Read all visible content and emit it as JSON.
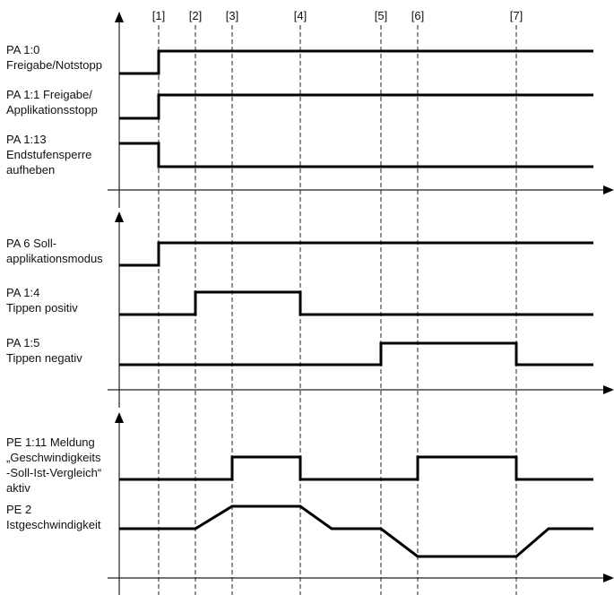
{
  "markers": [
    "[1]",
    "[2]",
    "[3]",
    "[4]",
    "[5]",
    "[6]",
    "[7]"
  ],
  "panels": [
    {
      "signals": [
        {
          "label": [
            "PA 1:0",
            "Freigabe/Notstopp"
          ],
          "type": "digital",
          "levels": [
            0,
            1,
            1,
            1,
            1,
            1,
            1,
            1
          ]
        },
        {
          "label": [
            "PA 1:1 Freigabe/",
            "Applikationsstopp"
          ],
          "type": "digital",
          "levels": [
            0,
            1,
            1,
            1,
            1,
            1,
            1,
            1
          ]
        },
        {
          "label": [
            "PA 1:13",
            "Endstufensperre",
            "aufheben"
          ],
          "type": "digital",
          "levels": [
            1,
            0,
            0,
            0,
            0,
            0,
            0,
            0
          ]
        }
      ]
    },
    {
      "signals": [
        {
          "label": [
            "PA 6 Soll-",
            "applikationsmodus"
          ],
          "type": "digital",
          "levels": [
            0,
            1,
            1,
            1,
            1,
            1,
            1,
            1
          ]
        },
        {
          "label": [
            "PA 1:4",
            "Tippen positiv"
          ],
          "type": "digital",
          "levels": [
            0,
            0,
            1,
            1,
            0,
            0,
            0,
            0
          ]
        },
        {
          "label": [
            "PA 1:5",
            "Tippen negativ"
          ],
          "type": "digital",
          "levels": [
            0,
            0,
            0,
            0,
            0,
            1,
            1,
            0
          ]
        }
      ]
    },
    {
      "signals": [
        {
          "label": [
            "PE 1:11 Meldung",
            "„Geschwindigkeits",
            "-Soll-Ist-Vergleich“",
            "aktiv"
          ],
          "type": "digital",
          "levels": [
            0,
            0,
            0,
            1,
            0,
            0,
            1,
            0
          ]
        },
        {
          "label": [
            "PE 2",
            "Istgeschwindigkeit"
          ],
          "type": "analog",
          "points": [
            [
              "start",
              0
            ],
            [
              "[2]",
              0
            ],
            [
              "[3]",
              1
            ],
            [
              "[4]",
              1
            ],
            [
              "[4]+",
              0
            ],
            [
              "[5]",
              0
            ],
            [
              "[6]",
              -1
            ],
            [
              "[7]",
              -1
            ],
            [
              "[7]+",
              0
            ],
            [
              "end",
              0
            ]
          ]
        }
      ]
    }
  ]
}
